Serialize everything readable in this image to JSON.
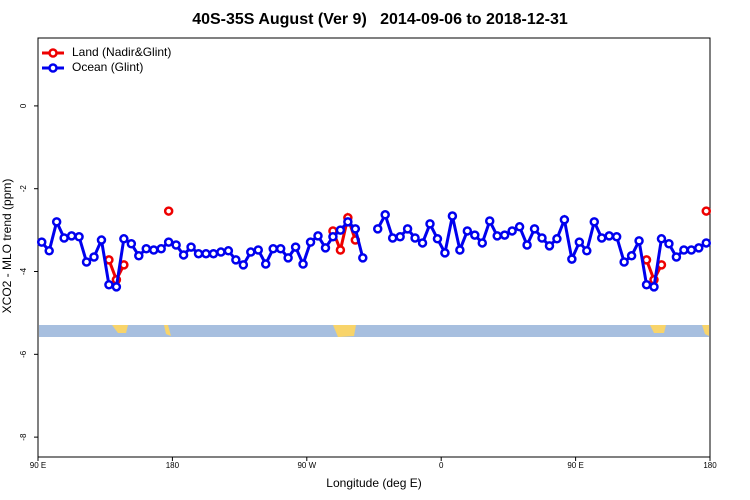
{
  "chart_data": {
    "type": "line",
    "title": "40S-35S August (Ver 9)   2014-09-06 to 2018-12-31",
    "x_label": "Longitude (deg E)",
    "y_label": "XCO2 - MLO trend (ppm)",
    "x": [
      92.5,
      97.5,
      102.5,
      107.5,
      112.5,
      117.5,
      122.5,
      127.5,
      132.5,
      137.5,
      142.5,
      147.5,
      152.5,
      157.5,
      162.5,
      167.5,
      172.5,
      177.5,
      182.5,
      187.5,
      192.5,
      197.5,
      202.5,
      207.5,
      212.5,
      217.5,
      222.5,
      227.5,
      232.5,
      237.5,
      242.5,
      247.5,
      252.5,
      257.5,
      262.5,
      267.5,
      272.5,
      277.5,
      282.5,
      287.5,
      292.5,
      297.5,
      302.5,
      307.5,
      312.5,
      317.5,
      322.5,
      327.5,
      332.5,
      337.5,
      342.5,
      347.5,
      352.5,
      357.5,
      362.5,
      367.5,
      372.5,
      377.5,
      382.5,
      387.5,
      392.5,
      397.5,
      402.5,
      407.5,
      412.5,
      417.5,
      422.5,
      427.5,
      432.5,
      437.5,
      442.5,
      447.5,
      452.5,
      457.5,
      462.5,
      467.5,
      472.5,
      477.5,
      482.5,
      487.5,
      492.5,
      497.5,
      502.5,
      507.5,
      512.5,
      517.5,
      522.5,
      527.5,
      532.5,
      537.5
    ],
    "series": [
      {
        "name": "Land (Nadir&Glint)",
        "color": "#ee0000",
        "values": [
          null,
          null,
          null,
          null,
          null,
          null,
          null,
          null,
          null,
          -3.72,
          -4.2,
          -3.84,
          null,
          null,
          null,
          null,
          null,
          -2.54,
          null,
          null,
          null,
          null,
          null,
          null,
          null,
          null,
          null,
          null,
          null,
          null,
          null,
          null,
          null,
          null,
          null,
          null,
          null,
          null,
          null,
          -3.02,
          -3.48,
          -2.7,
          -3.24,
          null,
          null,
          null,
          null,
          null,
          null,
          null,
          null,
          null,
          null,
          null,
          null,
          null,
          null,
          null,
          null,
          null,
          null,
          null,
          null,
          null,
          null,
          null,
          null,
          null,
          null,
          null,
          null,
          null,
          null,
          null,
          null,
          null,
          null,
          null,
          null,
          null,
          null,
          -3.72,
          -4.2,
          -3.84,
          null,
          null,
          null,
          null,
          null,
          -2.54
        ]
      },
      {
        "name": "Ocean (Glint)",
        "color": "#0000ee",
        "values": [
          -3.29,
          -3.5,
          -2.8,
          -3.19,
          -3.14,
          -3.16,
          -3.77,
          -3.65,
          -3.24,
          -4.32,
          -4.37,
          -3.21,
          -3.33,
          -3.62,
          -3.45,
          -3.48,
          -3.45,
          -3.29,
          -3.36,
          -3.6,
          -3.41,
          -3.57,
          -3.57,
          -3.57,
          -3.53,
          -3.5,
          -3.72,
          -3.84,
          -3.53,
          -3.48,
          -3.82,
          -3.45,
          -3.45,
          -3.67,
          -3.41,
          -3.82,
          -3.29,
          -3.14,
          -3.43,
          -3.16,
          -3.0,
          -2.8,
          -2.97,
          -3.67,
          null,
          -2.97,
          -2.63,
          -3.19,
          -3.16,
          -2.97,
          -3.19,
          -3.31,
          -2.85,
          -3.21,
          -3.55,
          -2.66,
          -3.48,
          -3.02,
          -3.12,
          -3.31,
          -2.78,
          -3.14,
          -3.12,
          -3.02,
          -2.92,
          -3.36,
          -2.97,
          -3.19,
          -3.38,
          -3.21,
          -2.75,
          -3.7,
          -3.29,
          -3.5,
          -2.8,
          -3.19,
          -3.14,
          -3.16,
          -3.77,
          -3.62,
          -3.26,
          -4.32,
          -4.37,
          -3.21,
          -3.33,
          -3.65,
          -3.48,
          -3.48,
          -3.43,
          -3.31
        ]
      }
    ],
    "xlim": [
      90,
      540
    ],
    "xticks": [
      {
        "value": 90,
        "label": "90 E"
      },
      {
        "value": 180,
        "label": "180"
      },
      {
        "value": 270,
        "label": "90 W"
      },
      {
        "value": 360,
        "label": "0"
      },
      {
        "value": 450,
        "label": "90 E"
      },
      {
        "value": 540,
        "label": "180"
      }
    ],
    "ylim": [
      -8.48,
      1.64
    ],
    "yticks": [
      -8,
      -6,
      -4,
      -2,
      0
    ],
    "legend": "topleft"
  }
}
